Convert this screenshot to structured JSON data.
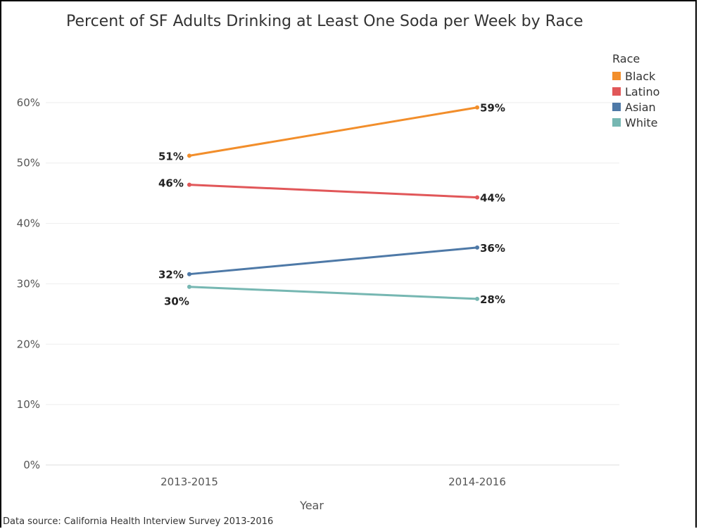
{
  "chart_data": {
    "type": "line",
    "title": "Percent of SF Adults Drinking at Least One Soda per Week by Race",
    "xlabel": "Year",
    "ylabel": "",
    "categories": [
      "2013-2015",
      "2014-2016"
    ],
    "ylim": [
      0,
      70
    ],
    "yticks": [
      0,
      10,
      20,
      30,
      40,
      50,
      60
    ],
    "ytick_labels": [
      "0%",
      "10%",
      "20%",
      "30%",
      "40%",
      "50%",
      "60%"
    ],
    "grid": true,
    "legend": {
      "title": "Race",
      "placement": "top-right"
    },
    "series": [
      {
        "name": "Black",
        "color": "#f28e2b",
        "values": [
          51.2,
          59.2
        ],
        "labels": [
          "51%",
          "59%"
        ]
      },
      {
        "name": "Latino",
        "color": "#e15759",
        "values": [
          46.4,
          44.3
        ],
        "labels": [
          "46%",
          "44%"
        ]
      },
      {
        "name": "Asian",
        "color": "#4e79a7",
        "values": [
          31.6,
          36.0
        ],
        "labels": [
          "32%",
          "36%"
        ]
      },
      {
        "name": "White",
        "color": "#76b7b2",
        "values": [
          29.5,
          27.5
        ],
        "labels": [
          "30%",
          "28%"
        ]
      }
    ]
  },
  "footer": {
    "source": "Data source: California Health Interview Survey 2013-2016"
  }
}
